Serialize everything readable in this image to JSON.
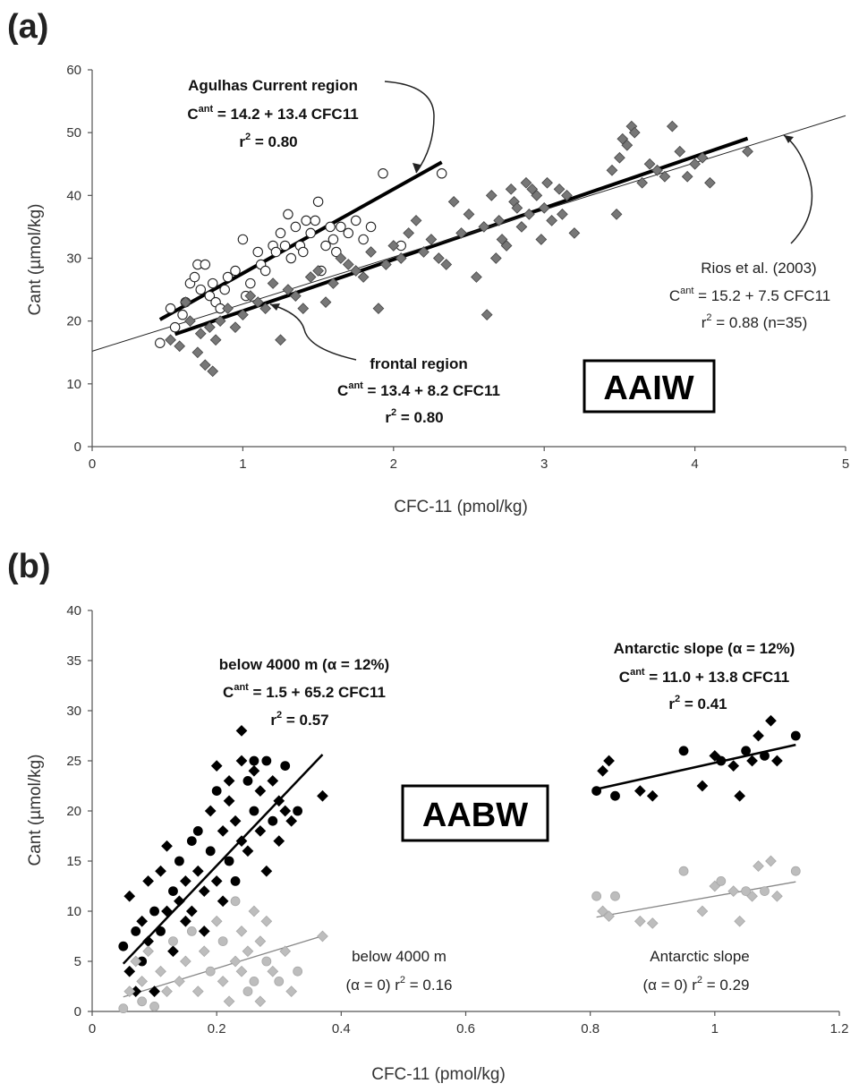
{
  "chart_data": [
    {
      "type": "scatter",
      "panel_label": "(a)",
      "xlabel": "CFC-11 (pmol/kg)",
      "ylabel": "Cant (µmol/kg)",
      "xlim": [
        0,
        5
      ],
      "ylim": [
        0,
        60
      ],
      "xticks": [
        "0",
        "1",
        "2",
        "3",
        "4",
        "5"
      ],
      "yticks": [
        "0",
        "10",
        "20",
        "30",
        "40",
        "50",
        "60"
      ],
      "grid": false,
      "box_label": "AAIW",
      "annotations": {
        "agulhas": {
          "title": "Agulhas Current region",
          "c": "C",
          "sup": "ant",
          "eq": " = 14.2 + 13.4 CFC11",
          "r": "r",
          "rsup": "2",
          "rval": " = 0.80"
        },
        "frontal": {
          "title": "frontal region",
          "c": "C",
          "sup": "ant",
          "eq": " = 13.4 + 8.2 CFC11",
          "r": "r",
          "rsup": "2",
          "rval": " = 0.80"
        },
        "rios": {
          "title": "Rios et al. (2003)",
          "c": "C",
          "sup": "ant",
          "eq": " = 15.2 + 7.5 CFC11",
          "r": "r",
          "rsup": "2",
          "rval": " = 0.88 (n=35)"
        }
      },
      "lines": [
        {
          "label": "Agulhas Current region",
          "intercept": 14.2,
          "slope": 13.4,
          "x_range": [
            0.45,
            2.32
          ],
          "style": "thick"
        },
        {
          "label": "frontal region",
          "intercept": 13.4,
          "slope": 8.2,
          "x_range": [
            0.55,
            4.35
          ],
          "style": "thick"
        },
        {
          "label": "Rios et al. (2003)",
          "intercept": 15.2,
          "slope": 7.5,
          "x_range": [
            0,
            5
          ],
          "style": "thin"
        }
      ],
      "series": [
        {
          "name": "Agulhas Current region",
          "marker": "circle-open",
          "x": [
            0.45,
            0.52,
            0.55,
            0.6,
            0.62,
            0.65,
            0.68,
            0.7,
            0.72,
            0.75,
            0.78,
            0.8,
            0.82,
            0.85,
            0.88,
            0.9,
            0.95,
            1.0,
            1.02,
            1.05,
            1.1,
            1.12,
            1.15,
            1.2,
            1.22,
            1.25,
            1.28,
            1.3,
            1.32,
            1.35,
            1.38,
            1.4,
            1.42,
            1.45,
            1.48,
            1.5,
            1.52,
            1.55,
            1.58,
            1.6,
            1.62,
            1.65,
            1.7,
            1.75,
            1.8,
            1.85,
            1.93,
            2.05,
            2.32
          ],
          "y": [
            16.5,
            22,
            19,
            21,
            23,
            26,
            27,
            29,
            25,
            29,
            24,
            26,
            23,
            22,
            25,
            27,
            28,
            33,
            24,
            26,
            31,
            29,
            28,
            32,
            31,
            34,
            32,
            37,
            30,
            35,
            32,
            31,
            36,
            34,
            36,
            39,
            28,
            32,
            35,
            33,
            31,
            35,
            34,
            36,
            33,
            35,
            43.5,
            32,
            43.5
          ]
        },
        {
          "name": "frontal region",
          "marker": "diamond-gray",
          "x": [
            0.52,
            0.58,
            0.62,
            0.65,
            0.7,
            0.72,
            0.75,
            0.78,
            0.8,
            0.82,
            0.85,
            0.9,
            0.95,
            1.0,
            1.05,
            1.1,
            1.15,
            1.2,
            1.25,
            1.3,
            1.35,
            1.4,
            1.45,
            1.5,
            1.55,
            1.6,
            1.65,
            1.7,
            1.75,
            1.8,
            1.85,
            1.9,
            1.95,
            2.0,
            2.05,
            2.1,
            2.15,
            2.2,
            2.25,
            2.3,
            2.35,
            2.4,
            2.45,
            2.5,
            2.55,
            2.6,
            2.62,
            2.65,
            2.68,
            2.7,
            2.72,
            2.75,
            2.78,
            2.8,
            2.82,
            2.85,
            2.88,
            2.9,
            2.92,
            2.95,
            2.98,
            3.0,
            3.02,
            3.05,
            3.1,
            3.12,
            3.15,
            3.2,
            3.45,
            3.48,
            3.5,
            3.52,
            3.55,
            3.58,
            3.6,
            3.65,
            3.7,
            3.75,
            3.8,
            3.85,
            3.9,
            3.95,
            4.0,
            4.05,
            4.1,
            4.35
          ],
          "y": [
            17,
            16,
            23,
            20,
            15,
            18,
            13,
            19,
            12,
            17,
            20,
            22,
            19,
            21,
            24,
            23,
            22,
            26,
            17,
            25,
            24,
            22,
            27,
            28,
            23,
            26,
            30,
            29,
            28,
            27,
            31,
            22,
            29,
            32,
            30,
            34,
            36,
            31,
            33,
            30,
            29,
            39,
            34,
            37,
            27,
            35,
            21,
            40,
            30,
            36,
            33,
            32,
            41,
            39,
            38,
            35,
            42,
            37,
            41,
            40,
            33,
            38,
            42,
            36,
            41,
            37,
            40,
            34,
            44,
            37,
            46,
            49,
            48,
            51,
            50,
            42,
            45,
            44,
            43,
            51,
            47,
            43,
            45,
            46,
            42,
            47
          ]
        }
      ]
    },
    {
      "type": "scatter",
      "panel_label": "(b)",
      "xlabel": "CFC-11 (pmol/kg)",
      "ylabel": "Cant (µmol/kg)",
      "xlim": [
        0,
        1.2
      ],
      "ylim": [
        0,
        40
      ],
      "xticks": [
        "0",
        "0.2",
        "0.4",
        "0.6",
        "0.8",
        "1",
        "1.2"
      ],
      "yticks": [
        "0",
        "5",
        "10",
        "15",
        "20",
        "25",
        "30",
        "35",
        "40"
      ],
      "grid": false,
      "box_label": "AABW",
      "annotations": {
        "below_alpha": {
          "title": "below 4000 m (α = 12%)",
          "c": "C",
          "sup": "ant",
          "eq": " = 1.5 + 65.2 CFC11",
          "r": "r",
          "rsup": "2",
          "rval": " = 0.57"
        },
        "slope_alpha": {
          "title": "Antarctic slope (α = 12%)",
          "c": "C",
          "sup": "ant",
          "eq": " = 11.0 + 13.8 CFC11",
          "r": "r",
          "rsup": "2",
          "rval": " = 0.41"
        },
        "below_zero": {
          "title": "below 4000 m",
          "alpha": "(α = 0) r",
          "rsup": "2",
          "rval": " = 0.16"
        },
        "slope_zero": {
          "title": "Antarctic slope",
          "alpha": "(α = 0) r",
          "rsup": "2",
          "rval": " = 0.29"
        }
      },
      "lines": [
        {
          "label": "below 4000 m (α = 12%)",
          "intercept": 1.5,
          "slope": 65.2,
          "x_range": [
            0.05,
            0.37
          ],
          "style": "black"
        },
        {
          "label": "below 4000 m (α = 0)",
          "intercept": 0.5,
          "slope": 19.0,
          "x_range": [
            0.05,
            0.37
          ],
          "style": "gray"
        },
        {
          "label": "Antarctic slope (α = 12%)",
          "intercept": 11.0,
          "slope": 13.8,
          "x_range": [
            0.81,
            1.13
          ],
          "style": "black"
        },
        {
          "label": "Antarctic slope (α = 0)",
          "intercept": 0.5,
          "slope": 11.0,
          "x_range": [
            0.81,
            1.13
          ],
          "style": "gray"
        }
      ],
      "series": [
        {
          "name": "below 4000 m (α = 12%)",
          "marker": "black",
          "x": [
            0.05,
            0.06,
            0.06,
            0.07,
            0.07,
            0.08,
            0.08,
            0.09,
            0.09,
            0.1,
            0.1,
            0.11,
            0.11,
            0.12,
            0.12,
            0.13,
            0.13,
            0.14,
            0.14,
            0.15,
            0.15,
            0.16,
            0.16,
            0.17,
            0.17,
            0.18,
            0.18,
            0.19,
            0.19,
            0.2,
            0.2,
            0.21,
            0.21,
            0.22,
            0.22,
            0.23,
            0.23,
            0.24,
            0.24,
            0.25,
            0.25,
            0.26,
            0.26,
            0.27,
            0.27,
            0.28,
            0.28,
            0.29,
            0.29,
            0.3,
            0.3,
            0.31,
            0.31,
            0.32,
            0.33,
            0.37,
            0.24,
            0.26,
            0.22,
            0.2
          ],
          "y": [
            6.5,
            11.5,
            4,
            8,
            2,
            9,
            5,
            13,
            7,
            10,
            2,
            14,
            8,
            16.5,
            10,
            12,
            6,
            11,
            15,
            9,
            13,
            17,
            10,
            14,
            18,
            12,
            8,
            16,
            20,
            13,
            22,
            11,
            18,
            15,
            21,
            19,
            13,
            25,
            17,
            23,
            16,
            24,
            20,
            22,
            18,
            25,
            14,
            23,
            19,
            21,
            17,
            24.5,
            20,
            19,
            20,
            21.5,
            28,
            25,
            23,
            24.5
          ]
        },
        {
          "name": "below 4000 m (α = 0)",
          "marker": "lightgray",
          "x": [
            0.05,
            0.06,
            0.07,
            0.08,
            0.08,
            0.09,
            0.1,
            0.11,
            0.12,
            0.13,
            0.14,
            0.15,
            0.16,
            0.17,
            0.18,
            0.19,
            0.2,
            0.21,
            0.21,
            0.22,
            0.23,
            0.23,
            0.24,
            0.24,
            0.25,
            0.25,
            0.26,
            0.26,
            0.27,
            0.27,
            0.28,
            0.28,
            0.29,
            0.3,
            0.31,
            0.32,
            0.33,
            0.37
          ],
          "y": [
            0.3,
            2,
            5,
            1,
            3,
            6,
            0.5,
            4,
            2,
            7,
            3,
            5,
            8,
            2,
            6,
            4,
            9,
            3,
            7,
            1,
            5,
            11,
            4,
            8,
            2,
            6,
            10,
            3,
            7,
            1,
            5,
            9,
            4,
            3,
            6,
            2,
            4,
            7.5
          ]
        },
        {
          "name": "Antarctic slope (α = 12%)",
          "marker": "black",
          "x": [
            0.81,
            0.82,
            0.83,
            0.84,
            0.88,
            0.9,
            0.95,
            0.98,
            1.0,
            1.01,
            1.03,
            1.04,
            1.05,
            1.06,
            1.07,
            1.08,
            1.09,
            1.1,
            1.13
          ],
          "y": [
            22,
            24,
            25,
            21.5,
            22,
            21.5,
            26,
            22.5,
            25.5,
            25,
            24.5,
            21.5,
            26,
            25,
            27.5,
            25.5,
            29,
            25,
            27.5
          ]
        },
        {
          "name": "Antarctic slope (α = 0)",
          "marker": "lightgray",
          "x": [
            0.81,
            0.82,
            0.83,
            0.84,
            0.88,
            0.9,
            0.95,
            0.98,
            1.0,
            1.01,
            1.03,
            1.04,
            1.05,
            1.06,
            1.07,
            1.08,
            1.09,
            1.1,
            1.13
          ],
          "y": [
            11.5,
            10,
            9.5,
            11.5,
            9,
            8.8,
            14,
            10,
            12.5,
            13,
            12,
            9,
            12,
            11.5,
            14.5,
            12,
            15,
            11.5,
            14
          ]
        }
      ]
    }
  ]
}
